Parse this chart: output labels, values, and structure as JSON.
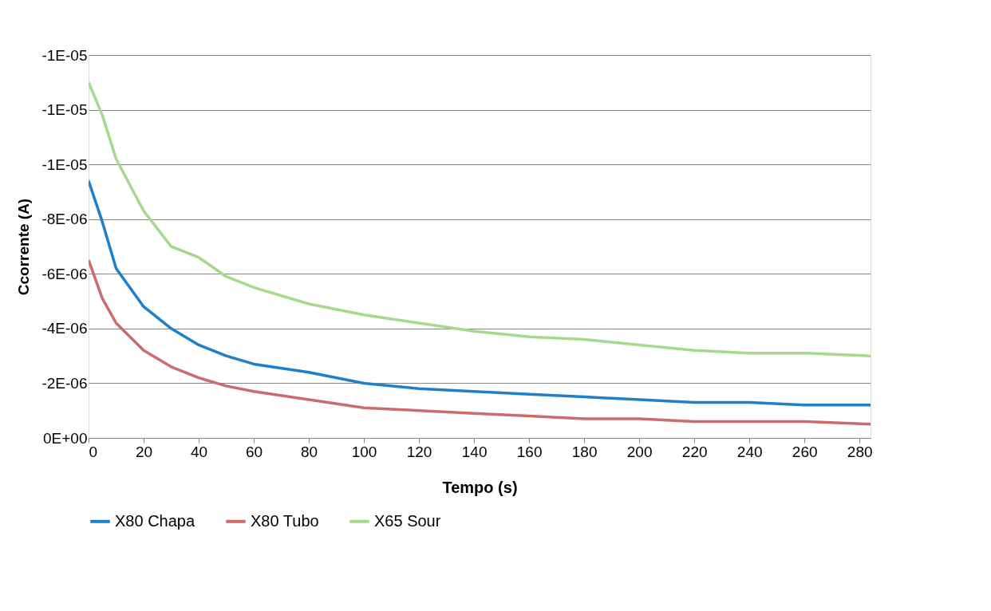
{
  "chart_data": {
    "type": "line",
    "xlabel": "Tempo (s)",
    "ylabel": "Ccorrente (A)",
    "xlim": [
      0,
      284
    ],
    "xticks": [
      0,
      20,
      40,
      60,
      80,
      100,
      120,
      140,
      160,
      180,
      200,
      220,
      240,
      260,
      280
    ],
    "ylim": [
      0,
      -1.4e-05
    ],
    "yticks": [
      {
        "value": 0,
        "label": "0E+00"
      },
      {
        "value": -2e-06,
        "label": "-2E-06"
      },
      {
        "value": -4e-06,
        "label": "-4E-06"
      },
      {
        "value": -6e-06,
        "label": "-6E-06"
      },
      {
        "value": -8e-06,
        "label": "-8E-06"
      },
      {
        "value": -1e-05,
        "label": "-1E-05"
      },
      {
        "value": -1.2e-05,
        "label": "-1E-05"
      },
      {
        "value": -1.4e-05,
        "label": "-1E-05"
      }
    ],
    "grid": "y",
    "legend": "bottom",
    "marker": "none",
    "line_style": "solid",
    "x": [
      0,
      5,
      10,
      20,
      30,
      40,
      50,
      60,
      80,
      100,
      120,
      140,
      160,
      180,
      200,
      220,
      240,
      260,
      284
    ],
    "series": [
      {
        "name": "X80 Chapa",
        "color": "#1f7fc9",
        "values": [
          -9.4e-06,
          -7.9e-06,
          -6.2e-06,
          -4.8e-06,
          -4e-06,
          -3.4e-06,
          -3e-06,
          -2.7e-06,
          -2.4e-06,
          -2e-06,
          -1.8e-06,
          -1.7e-06,
          -1.6e-06,
          -1.5e-06,
          -1.4e-06,
          -1.3e-06,
          -1.3e-06,
          -1.2e-06,
          -1.2e-06
        ]
      },
      {
        "name": "X80 Tubo",
        "color": "#cc6b6b",
        "values": [
          -6.5e-06,
          -5.1e-06,
          -4.2e-06,
          -3.2e-06,
          -2.6e-06,
          -2.2e-06,
          -1.9e-06,
          -1.7e-06,
          -1.4e-06,
          -1.1e-06,
          -1e-06,
          -9e-07,
          -8e-07,
          -7e-07,
          -7e-07,
          -6e-07,
          -6e-07,
          -6e-07,
          -5e-07
        ]
      },
      {
        "name": "X65 Sour",
        "color": "#a6d98c",
        "values": [
          -1.3e-05,
          -1.18e-05,
          -1.02e-05,
          -8.3e-06,
          -7e-06,
          -6.6e-06,
          -5.9e-06,
          -5.5e-06,
          -4.9e-06,
          -4.5e-06,
          -4.2e-06,
          -3.9e-06,
          -3.7e-06,
          -3.6e-06,
          -3.4e-06,
          -3.2e-06,
          -3.1e-06,
          -3.1e-06,
          -3e-06
        ]
      }
    ]
  }
}
